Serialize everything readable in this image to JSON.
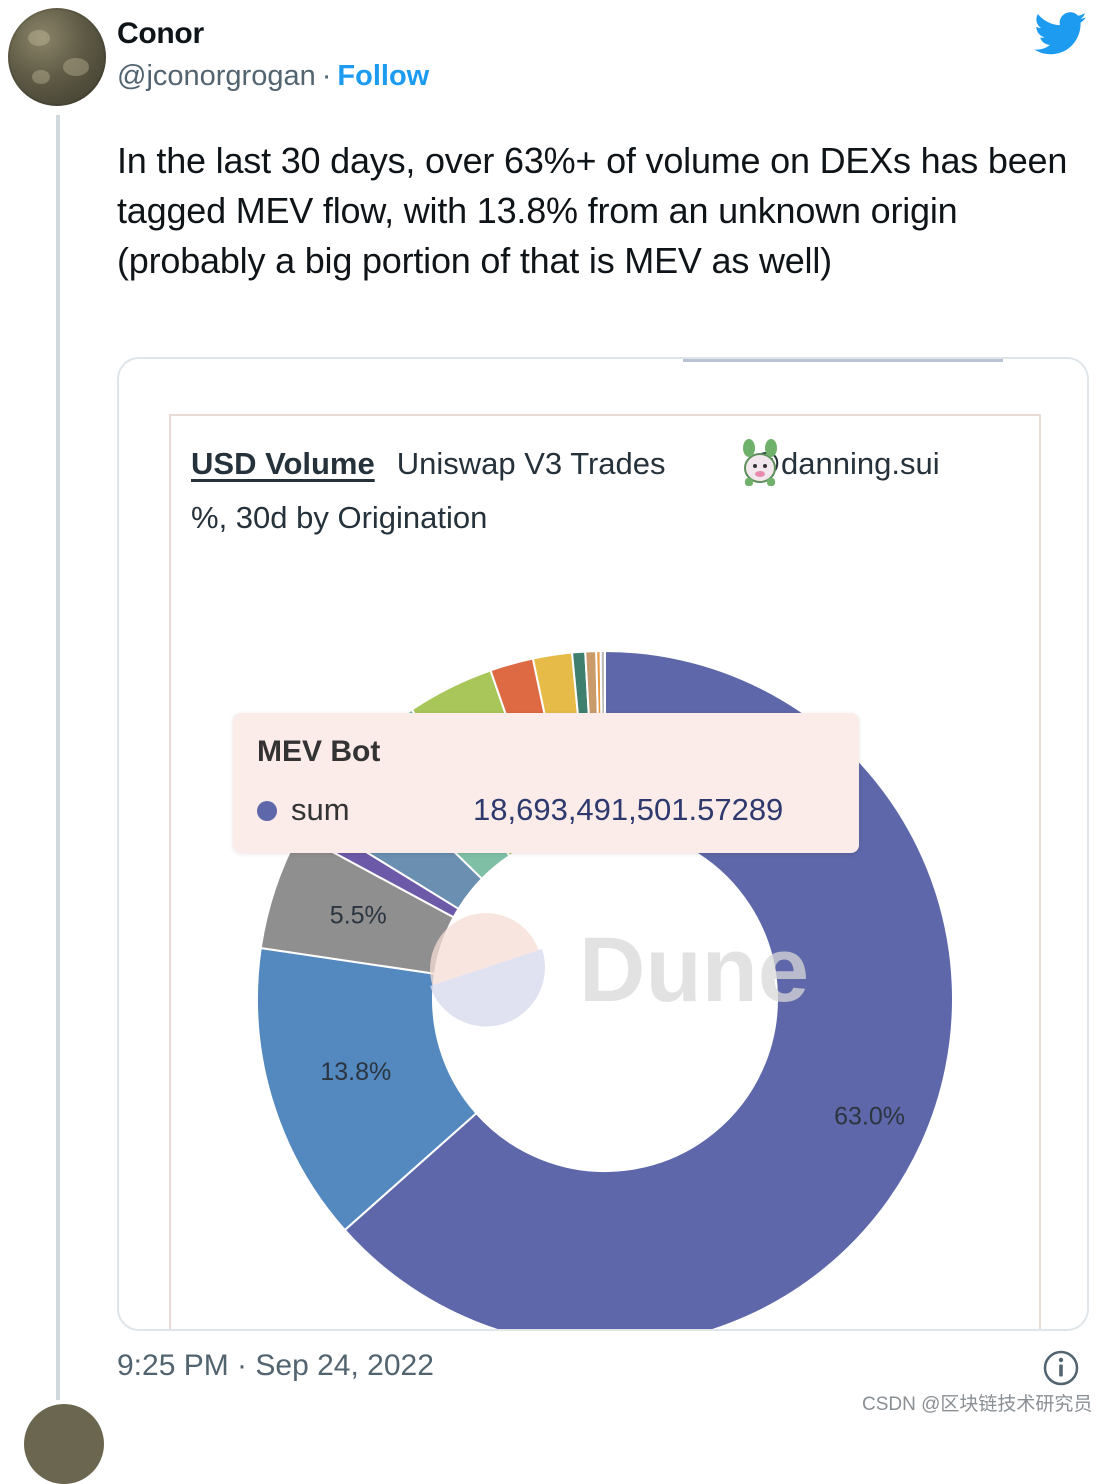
{
  "tweet": {
    "author_name": "Conor",
    "handle": "@jconorgrogan",
    "separator": "·",
    "follow_label": "Follow",
    "text": "In the last 30 days, over 63%+ of volume on DEXs has been tagged MEV flow, with 13.8% from an unknown origin (probably a big portion of that is MEV as well)",
    "timestamp": "9:25 PM · Sep 24, 2022",
    "icons": {
      "brand": "twitter-bird-icon",
      "info": "info-icon",
      "author_avatar": "author-avatar-icon"
    },
    "colors": {
      "accent": "#1d9bf0",
      "muted": "#536471"
    }
  },
  "chart_data": {
    "type": "pie",
    "title": "USD Volume",
    "subtitle_parts": [
      "Uniswap V3 Trades",
      "@danning.sui",
      "%, 30d by Origination"
    ],
    "donut": true,
    "slices": [
      {
        "name": "MEV Bot",
        "value": 63.0,
        "label": "63.0%",
        "color": "#5e67a9"
      },
      {
        "name": "",
        "value": 13.8,
        "label": "13.8%",
        "color": "#5389bf"
      },
      {
        "name": "",
        "value": 5.5,
        "label": "5.5%",
        "color": "#8f8f8f"
      },
      {
        "name": "",
        "value": 0.9,
        "label": "",
        "color": "#6c5aa8"
      },
      {
        "name": "",
        "value": 3.5,
        "label": "",
        "color": "#6a8fb1"
      },
      {
        "name": "",
        "value": 3.3,
        "label": "",
        "color": "#7fbfa6"
      },
      {
        "name": "",
        "value": 4.0,
        "label": "",
        "color": "#a8c65a"
      },
      {
        "name": "",
        "value": 2.0,
        "label": "",
        "color": "#dd6a43"
      },
      {
        "name": "",
        "value": 1.8,
        "label": "",
        "color": "#e6bb48"
      },
      {
        "name": "",
        "value": 0.6,
        "label": "",
        "color": "#3f7f6e"
      },
      {
        "name": "",
        "value": 0.5,
        "label": "",
        "color": "#c99a6a"
      },
      {
        "name": "",
        "value": 0.2,
        "label": "",
        "color": "#e79a44"
      },
      {
        "name": "",
        "value": 0.2,
        "label": "",
        "color": "#bdbdbd"
      }
    ],
    "tooltip": {
      "title": "MEV Bot",
      "series_key": "sum",
      "value": "18,693,491,501.57289",
      "color": "#5e67a9"
    },
    "watermark": "Dune"
  },
  "footer": {
    "csdn_watermark": "CSDN @区块链技术研究员"
  }
}
